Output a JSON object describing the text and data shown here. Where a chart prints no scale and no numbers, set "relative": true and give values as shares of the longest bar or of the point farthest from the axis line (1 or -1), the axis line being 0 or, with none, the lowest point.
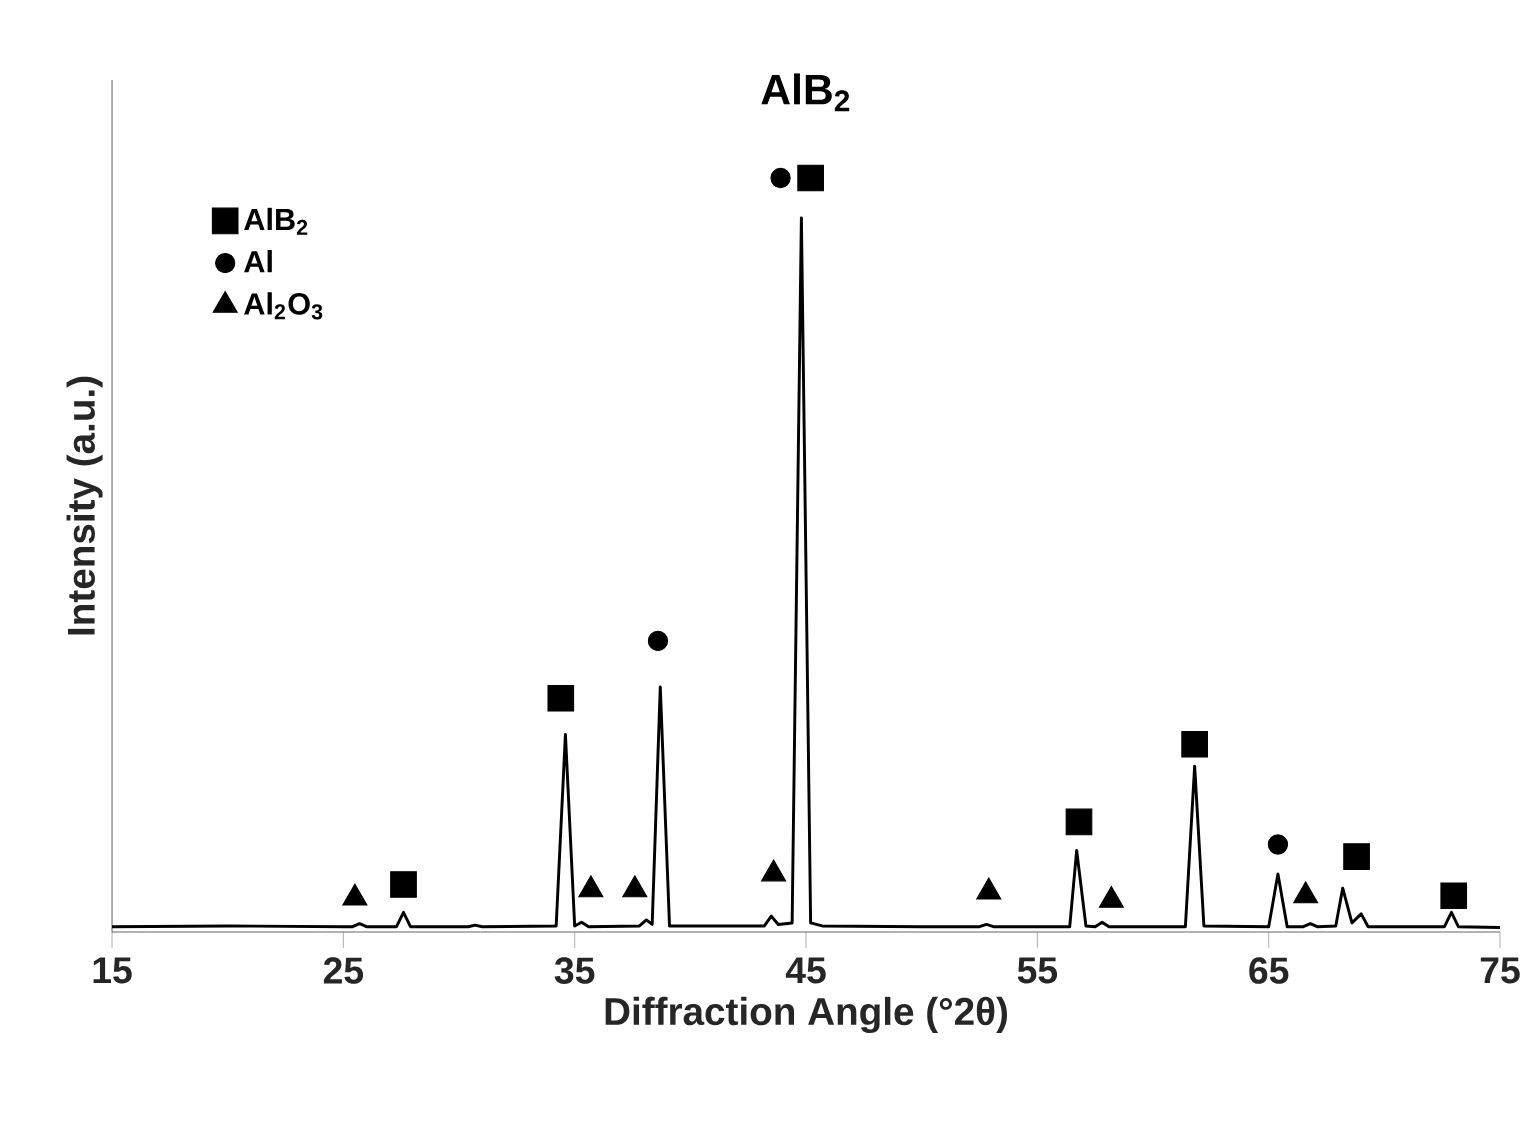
{
  "chart_data": {
    "type": "line",
    "title": "AlB$_{2}$",
    "xlabel": "Diffraction Angle (°2θ)",
    "ylabel": "Intensity (a.u.)",
    "relative": true,
    "xlim": [
      15,
      75
    ],
    "xticks": [
      15,
      25,
      35,
      45,
      55,
      65,
      75
    ],
    "grid": false,
    "legend": "top left",
    "series": [
      {
        "color": "#000000",
        "x": [
          15,
          20,
          25,
          25.4,
          25.7,
          26.0,
          27.3,
          27.6,
          27.9,
          30.4,
          30.7,
          31.0,
          34.2,
          34.6,
          35.0,
          35.3,
          35.6,
          37.8,
          38.1,
          38.35,
          38.7,
          39.1,
          43.2,
          43.5,
          43.8,
          44.4,
          44.8,
          45.2,
          45.7,
          50,
          52.5,
          52.8,
          53.1,
          56.4,
          56.7,
          57.1,
          57.5,
          57.8,
          58.1,
          61.4,
          61.8,
          62.2,
          65.0,
          65.4,
          65.8,
          66.5,
          66.8,
          67.1,
          67.9,
          68.2,
          68.6,
          69.0,
          69.3,
          72.6,
          72.9,
          73.2,
          75
        ],
        "values": [
          0.007,
          0.008,
          0.007,
          0.007,
          0.011,
          0.007,
          0.007,
          0.026,
          0.007,
          0.007,
          0.009,
          0.007,
          0.008,
          0.262,
          0.008,
          0.013,
          0.007,
          0.008,
          0.016,
          0.01,
          0.325,
          0.008,
          0.008,
          0.021,
          0.01,
          0.012,
          0.947,
          0.012,
          0.008,
          0.007,
          0.007,
          0.01,
          0.007,
          0.007,
          0.108,
          0.008,
          0.007,
          0.013,
          0.007,
          0.007,
          0.22,
          0.008,
          0.007,
          0.077,
          0.007,
          0.007,
          0.011,
          0.007,
          0.008,
          0.058,
          0.012,
          0.024,
          0.007,
          0.007,
          0.026,
          0.007,
          0.006
        ],
        "line_style": "solid",
        "marker": "none"
      },
      {
        "type": "scatter",
        "name": "AlB$_{2}$",
        "color": "#000000",
        "marker": "square",
        "x": [
          27.6,
          34.4,
          45.2,
          56.8,
          61.8,
          68.8,
          73.0
        ],
        "values": [
          0.063,
          0.31,
          1.0,
          0.146,
          0.249,
          0.1,
          0.048
        ]
      },
      {
        "type": "scatter",
        "name": "Al",
        "color": "#000000",
        "marker": "circle",
        "x": [
          43.9,
          38.6,
          65.4
        ],
        "values": [
          1.0,
          0.386,
          0.116
        ]
      },
      {
        "type": "scatter",
        "name": "Al$_{2}$O$_{3}$",
        "color": "#000000",
        "marker": "triangle",
        "x": [
          25.5,
          35.7,
          37.6,
          43.6,
          52.9,
          58.2,
          66.6
        ],
        "values": [
          0.045,
          0.056,
          0.056,
          0.077,
          0.053,
          0.042,
          0.048
        ]
      }
    ]
  }
}
